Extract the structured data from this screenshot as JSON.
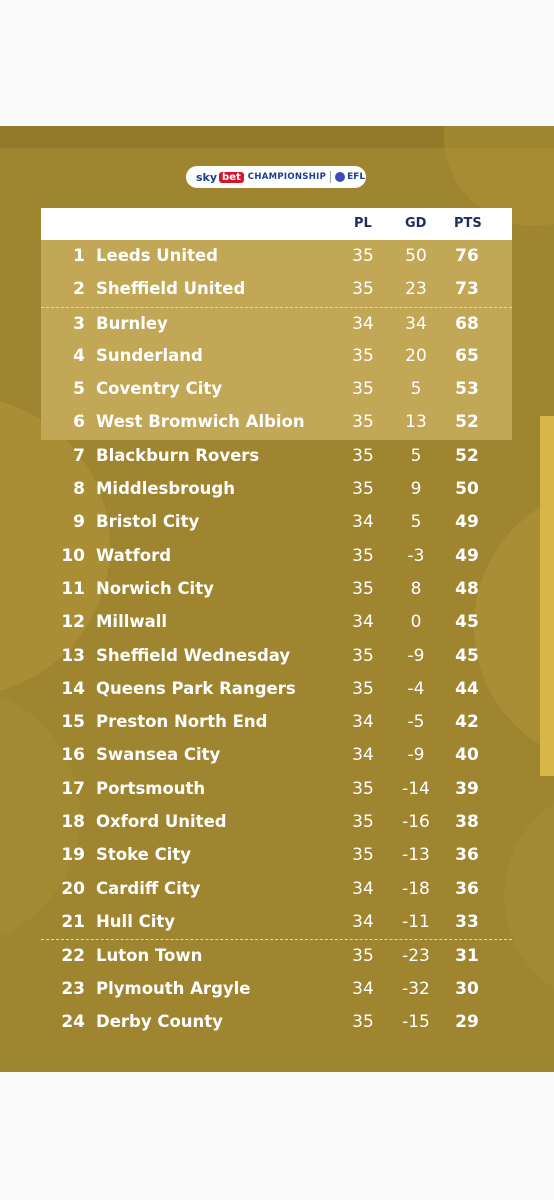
{
  "branding": {
    "sky": "sky",
    "bet": "bet",
    "competition": "CHAMPIONSHIP",
    "league": "EFL"
  },
  "table": {
    "headers": {
      "pl": "PL",
      "gd": "GD",
      "pts": "PTS"
    },
    "rows": [
      {
        "pos": "1",
        "team": "Leeds United",
        "pl": "35",
        "gd": "50",
        "pts": "76"
      },
      {
        "pos": "2",
        "team": "Sheffield United",
        "pl": "35",
        "gd": "23",
        "pts": "73"
      },
      {
        "pos": "3",
        "team": "Burnley",
        "pl": "34",
        "gd": "34",
        "pts": "68"
      },
      {
        "pos": "4",
        "team": "Sunderland",
        "pl": "35",
        "gd": "20",
        "pts": "65"
      },
      {
        "pos": "5",
        "team": "Coventry City",
        "pl": "35",
        "gd": "5",
        "pts": "53"
      },
      {
        "pos": "6",
        "team": "West Bromwich Albion",
        "pl": "35",
        "gd": "13",
        "pts": "52"
      },
      {
        "pos": "7",
        "team": "Blackburn Rovers",
        "pl": "35",
        "gd": "5",
        "pts": "52"
      },
      {
        "pos": "8",
        "team": "Middlesbrough",
        "pl": "35",
        "gd": "9",
        "pts": "50"
      },
      {
        "pos": "9",
        "team": "Bristol City",
        "pl": "34",
        "gd": "5",
        "pts": "49"
      },
      {
        "pos": "10",
        "team": "Watford",
        "pl": "35",
        "gd": "-3",
        "pts": "49"
      },
      {
        "pos": "11",
        "team": "Norwich City",
        "pl": "35",
        "gd": "8",
        "pts": "48"
      },
      {
        "pos": "12",
        "team": "Millwall",
        "pl": "34",
        "gd": "0",
        "pts": "45"
      },
      {
        "pos": "13",
        "team": "Sheffield Wednesday",
        "pl": "35",
        "gd": "-9",
        "pts": "45"
      },
      {
        "pos": "14",
        "team": "Queens Park Rangers",
        "pl": "35",
        "gd": "-4",
        "pts": "44"
      },
      {
        "pos": "15",
        "team": "Preston North End",
        "pl": "34",
        "gd": "-5",
        "pts": "42"
      },
      {
        "pos": "16",
        "team": "Swansea City",
        "pl": "34",
        "gd": "-9",
        "pts": "40"
      },
      {
        "pos": "17",
        "team": "Portsmouth",
        "pl": "35",
        "gd": "-14",
        "pts": "39"
      },
      {
        "pos": "18",
        "team": "Oxford United",
        "pl": "35",
        "gd": "-16",
        "pts": "38"
      },
      {
        "pos": "19",
        "team": "Stoke City",
        "pl": "35",
        "gd": "-13",
        "pts": "36"
      },
      {
        "pos": "20",
        "team": "Cardiff City",
        "pl": "34",
        "gd": "-18",
        "pts": "36"
      },
      {
        "pos": "21",
        "team": "Hull City",
        "pl": "34",
        "gd": "-11",
        "pts": "33"
      },
      {
        "pos": "22",
        "team": "Luton Town",
        "pl": "35",
        "gd": "-23",
        "pts": "31"
      },
      {
        "pos": "23",
        "team": "Plymouth Argyle",
        "pl": "34",
        "gd": "-32",
        "pts": "30"
      },
      {
        "pos": "24",
        "team": "Derby County",
        "pl": "35",
        "gd": "-15",
        "pts": "29"
      }
    ]
  }
}
